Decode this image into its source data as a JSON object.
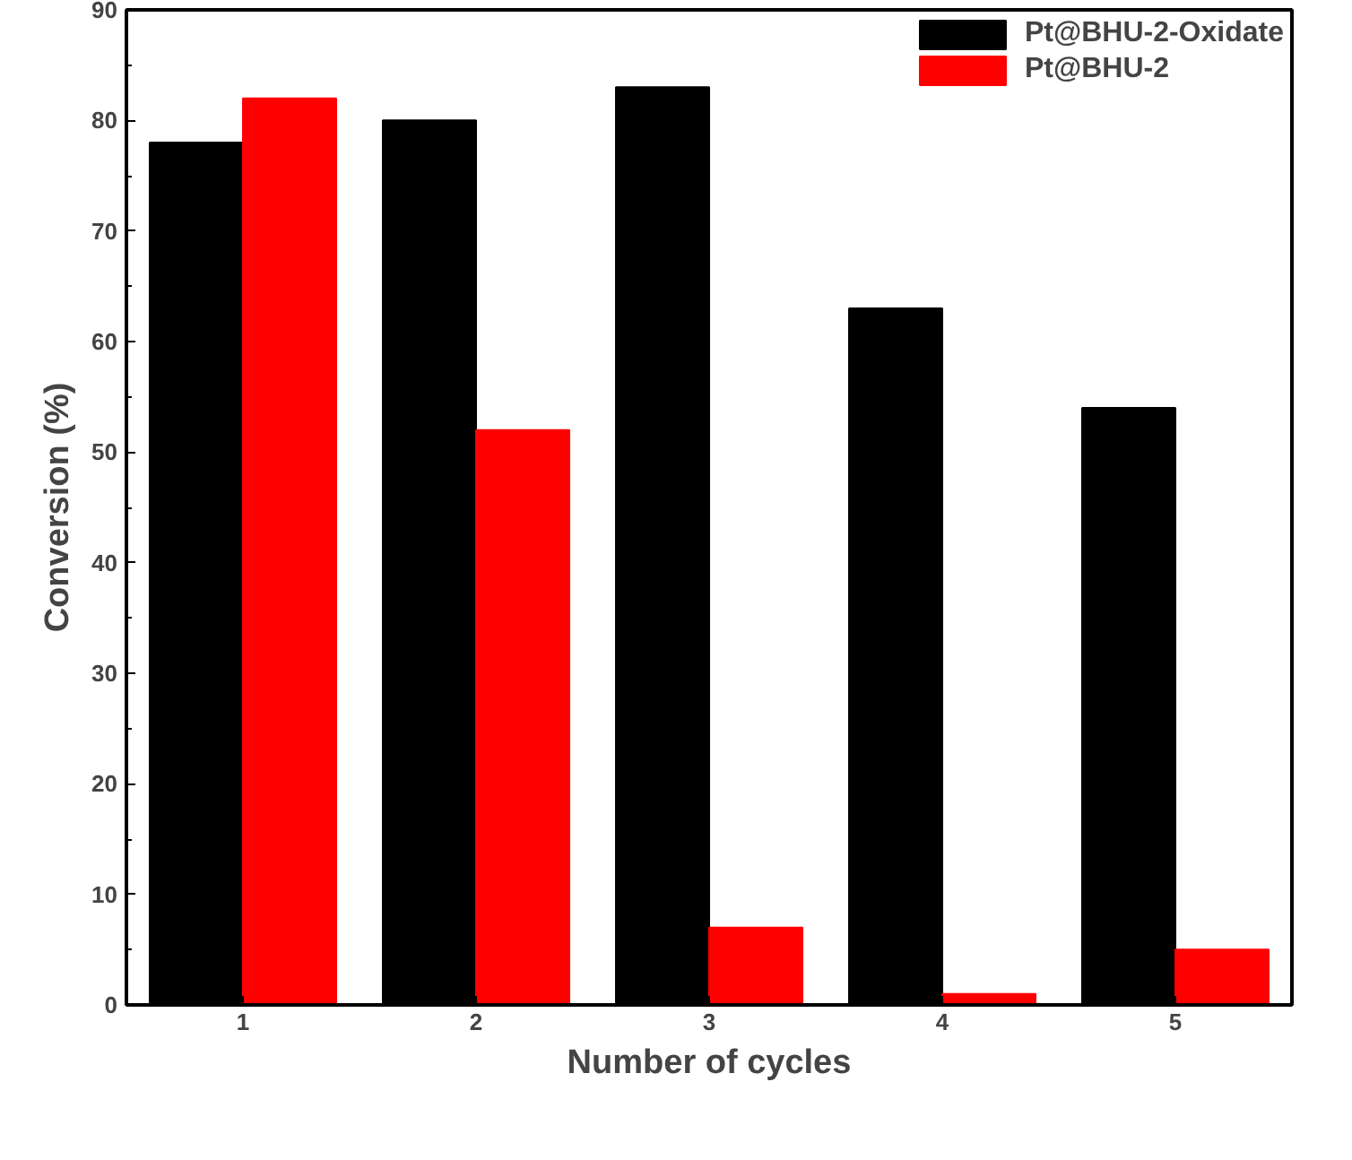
{
  "chart_data": {
    "type": "bar",
    "xlabel": "Number of cycles",
    "ylabel": "Conversion (%)",
    "categories": [
      "1",
      "2",
      "3",
      "4",
      "5"
    ],
    "series": [
      {
        "name": "Pt@BHU-2-Oxidate",
        "color": "#000000",
        "values": [
          78,
          80,
          83,
          63,
          54
        ]
      },
      {
        "name": "Pt@BHU-2",
        "color": "#ff0000",
        "values": [
          82,
          52,
          7,
          1,
          5
        ]
      }
    ],
    "ylim": [
      0,
      90
    ],
    "yticks": [
      0,
      10,
      20,
      30,
      40,
      50,
      60,
      70,
      80,
      90
    ],
    "grid": false,
    "legend": "top right"
  }
}
